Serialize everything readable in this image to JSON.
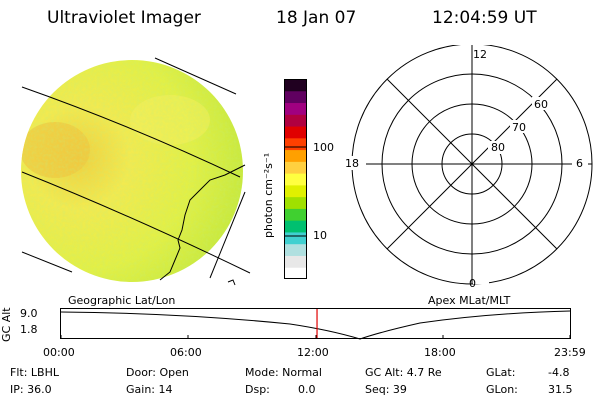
{
  "header": {
    "title": "Ultraviolet Imager",
    "date": "18 Jan 07",
    "time": "12:04:59 UT"
  },
  "colorbar": {
    "unit_label": "photon cm⁻²s⁻¹",
    "ticks": [
      "100",
      "10"
    ],
    "colors": [
      "#ffffff",
      "#e8e8e8",
      "#b0e0e0",
      "#40d0d0",
      "#00c070",
      "#40d030",
      "#a0e000",
      "#e0f000",
      "#ffff40",
      "#ffd040",
      "#ffa000",
      "#ff4000",
      "#e00000",
      "#b00040",
      "#a00080",
      "#600060",
      "#200020"
    ]
  },
  "polar_grid": {
    "labels": {
      "top": "12",
      "bottom": "0",
      "left": "18",
      "right": "6",
      "ring60": "60",
      "ring70": "70",
      "ring80": "80"
    }
  },
  "map_labels": {
    "left": "Geographic Lat/Lon",
    "right": "Apex MLat/MLT"
  },
  "altitude_plot": {
    "ylabel": "GC Alt",
    "yticks": [
      "9.0",
      "1.8"
    ],
    "xticks": [
      "00:00",
      "06:00",
      "12:00",
      "18:00",
      "23:59"
    ],
    "current_time_fraction": 0.503
  },
  "status": {
    "row1": {
      "filter": "Flt: LBHL",
      "door": "Door: Open",
      "mode": "Mode: Normal",
      "gc_alt": "GC Alt: 4.7 Re",
      "glat_label": "GLat:",
      "glat_value": "-4.8"
    },
    "row2": {
      "ip": "IP: 36.0",
      "gain": "Gain: 14",
      "dsp_label": "Dsp:",
      "dsp_value": "0.0",
      "seq": "Seq: 39",
      "glon_label": "GLon:",
      "glon_value": "31.5"
    }
  }
}
